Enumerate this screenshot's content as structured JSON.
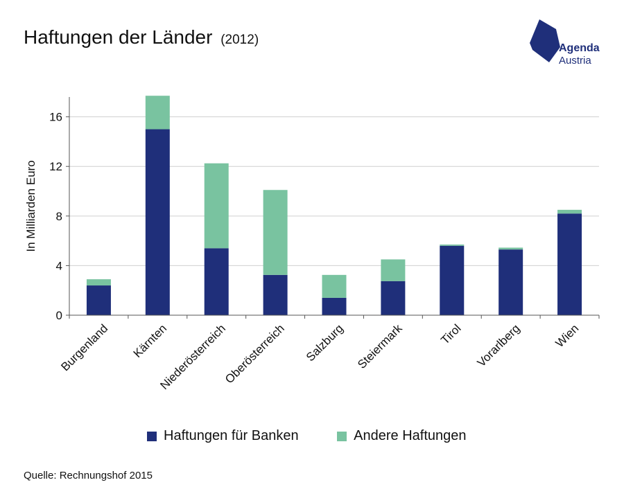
{
  "title": {
    "main": "Haftungen der Länder",
    "year": "(2012)"
  },
  "logo": {
    "line1": "Agenda",
    "line2": "Austria"
  },
  "source": "Quelle: Rechnungshof 2015",
  "colors": {
    "banks": "#1f2f7a",
    "other": "#79c3a0",
    "grid": "#cfcfcf",
    "axis": "#555555"
  },
  "chart_data": {
    "type": "bar",
    "stacked": true,
    "ylabel": "In Milliarden Euro",
    "ylim": [
      0,
      17.6
    ],
    "yticks": [
      0,
      4,
      8,
      12,
      16
    ],
    "grid": true,
    "legend_position": "bottom",
    "categories": [
      "Burgenland",
      "Kärnten",
      "Niederösterreich",
      "Oberösterreich",
      "Salzburg",
      "Steiermark",
      "Tirol",
      "Vorarlberg",
      "Wien"
    ],
    "series": [
      {
        "name": "Haftungen für Banken",
        "color": "#1f2f7a",
        "values": [
          2.4,
          15.0,
          5.4,
          3.25,
          1.4,
          2.75,
          5.6,
          5.3,
          8.2
        ]
      },
      {
        "name": "Andere Haftungen",
        "color": "#79c3a0",
        "values": [
          0.5,
          2.7,
          6.85,
          6.85,
          1.85,
          1.75,
          0.1,
          0.15,
          0.3
        ]
      }
    ]
  }
}
